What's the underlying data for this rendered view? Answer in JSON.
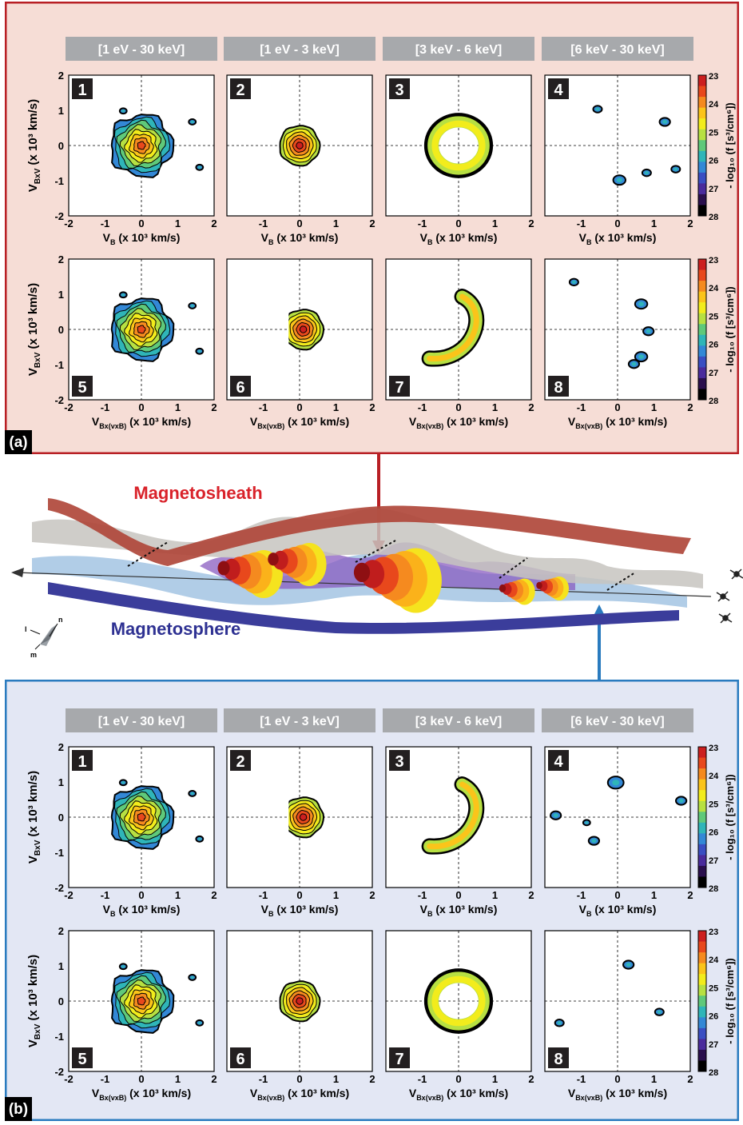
{
  "panels": [
    {
      "label": "(a)",
      "background": "#f6ddd6",
      "border": "#b81f24",
      "energy_headers": [
        "[1 eV - 30 keV]",
        "[1 eV - 3 keV]",
        "[3 keV - 6 keV]",
        "[6 keV - 30 keV]"
      ],
      "rows": [
        {
          "ylabel_main": "V",
          "ylabel_sub": "BxV",
          "ylabel_rest": " (x 10³ km/s)",
          "xlabel_main": "V",
          "xlabel_sub": "B",
          "xlabel_rest": " (x 10³ km/s)",
          "plot_numbers": [
            "1",
            "2",
            "3",
            "4"
          ],
          "shapes": [
            "blob",
            "disk",
            "ring",
            "spots"
          ]
        },
        {
          "ylabel_main": "V",
          "ylabel_sub": "BxV",
          "ylabel_rest": " (x 10³ km/s)",
          "xlabel_main": "V",
          "xlabel_sub": "Bx(vxB)",
          "xlabel_rest": " (x 10³ km/s)",
          "plot_numbers": [
            "5",
            "6",
            "7",
            "8"
          ],
          "shapes": [
            "blob",
            "halfdisk",
            "arc",
            "spots2"
          ]
        }
      ]
    },
    {
      "label": "(b)",
      "background": "#e3e7f4",
      "border": "#2a7bbf",
      "energy_headers": [
        "[1 eV - 30 keV]",
        "[1 eV - 3 keV]",
        "[3 keV - 6 keV]",
        "[6 keV - 30 keV]"
      ],
      "rows": [
        {
          "ylabel_main": "V",
          "ylabel_sub": "BxV",
          "ylabel_rest": " (x 10³ km/s)",
          "xlabel_main": "V",
          "xlabel_sub": "B",
          "xlabel_rest": " (x 10³ km/s)",
          "plot_numbers": [
            "1",
            "2",
            "3",
            "4"
          ],
          "shapes": [
            "blob",
            "halfdisk",
            "arc",
            "spots3"
          ]
        },
        {
          "ylabel_main": "V",
          "ylabel_sub": "BxV",
          "ylabel_rest": " (x 10³ km/s)",
          "xlabel_main": "V",
          "xlabel_sub": "Bx(vxB)",
          "xlabel_rest": " (x 10³ km/s)",
          "plot_numbers": [
            "5",
            "6",
            "7",
            "8"
          ],
          "shapes": [
            "blob",
            "disk",
            "ring",
            "spots4"
          ]
        }
      ]
    }
  ],
  "axis_ticks": [
    "-2",
    "-1",
    "0",
    "1",
    "2"
  ],
  "colorbar": {
    "ticks": [
      "23",
      "24",
      "25",
      "26",
      "27",
      "28"
    ],
    "label": "- log₁₀ (f [s³/cm⁶])",
    "colors": [
      "#cc1f1f",
      "#e8481c",
      "#f58a1f",
      "#fbc41a",
      "#f2ec1c",
      "#b7e042",
      "#5fc97a",
      "#2fb5b8",
      "#3388d6",
      "#3a4ec2",
      "#4a2b9c",
      "#2a0f4d",
      "#000000"
    ]
  },
  "diagram": {
    "magnetosheath_label": "Magnetosheath",
    "magnetosphere_label": "Magnetosphere",
    "magnetosheath_color": "#d9222a",
    "magnetosphere_color": "#2e3192",
    "axes": [
      "n",
      "l",
      "m"
    ]
  }
}
